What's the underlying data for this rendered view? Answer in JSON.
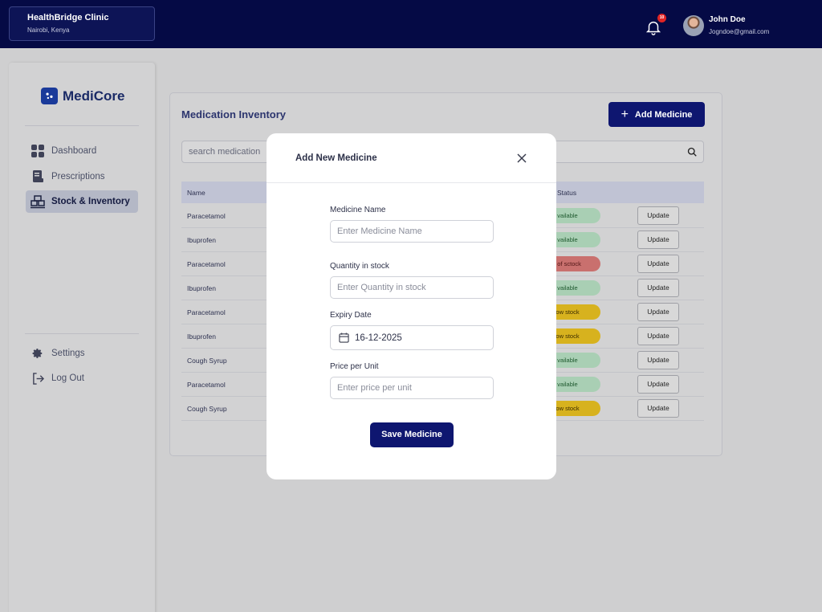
{
  "header": {
    "clinic_name": "HealthBridge Clinic",
    "clinic_location": "Nairobi, Kenya",
    "notification_count": "10",
    "user_name": "John Doe",
    "user_email": "Jogndoe@gmail.com"
  },
  "sidebar": {
    "logo_text": "MediCore",
    "items": [
      {
        "label": "Dashboard",
        "icon": "grid-icon"
      },
      {
        "label": "Prescriptions",
        "icon": "prescription-icon"
      },
      {
        "label": "Stock & Inventory",
        "icon": "inventory-icon"
      }
    ],
    "bottom_items": [
      {
        "label": "Settings",
        "icon": "gear-icon"
      },
      {
        "label": "Log Out",
        "icon": "logout-icon"
      }
    ]
  },
  "main": {
    "title": "Medication Inventory",
    "add_button_label": "Add Medicine",
    "search_placeholder": "search medication",
    "columns": {
      "name": "Name",
      "status": "Status"
    },
    "rows": [
      {
        "name": "Paracetamol",
        "status": "vailable",
        "status_type": "available",
        "action": "Update"
      },
      {
        "name": "Ibuprofen",
        "status": "vailable",
        "status_type": "available",
        "action": "Update"
      },
      {
        "name": "Paracetamol",
        "status": "t of sctock",
        "status_type": "out",
        "action": "Update"
      },
      {
        "name": "Ibuprofen",
        "status": "vailable",
        "status_type": "available",
        "action": "Update"
      },
      {
        "name": "Paracetamol",
        "status": "ow stock",
        "status_type": "low",
        "action": "Update"
      },
      {
        "name": "Ibuprofen",
        "status": "ow stock",
        "status_type": "low",
        "action": "Update"
      },
      {
        "name": "Cough Syrup",
        "status": "vailable",
        "status_type": "available",
        "action": "Update"
      },
      {
        "name": "Paracetamol",
        "status": "vailable",
        "status_type": "available",
        "action": "Update"
      },
      {
        "name": "Cough Syrup",
        "status": "ow stock",
        "status_type": "low",
        "action": "Update"
      }
    ]
  },
  "modal": {
    "title": "Add New Medicine",
    "fields": {
      "medicine_name": {
        "label": "Medicine Name",
        "placeholder": "Enter Medicine Name"
      },
      "quantity": {
        "label": "Quantity in stock",
        "placeholder": "Enter Quantity in stock"
      },
      "expiry": {
        "label": "Expiry Date",
        "value": "16-12-2025"
      },
      "price": {
        "label": "Price per Unit",
        "placeholder": "Enter price per unit"
      }
    },
    "save_label": "Save Medicine"
  },
  "colors": {
    "topbar": "#050a45",
    "primary_button": "#0e1670",
    "available": "#a9cfb4",
    "out_of_stock": "#c9706e",
    "low_stock": "#d7b21e"
  }
}
